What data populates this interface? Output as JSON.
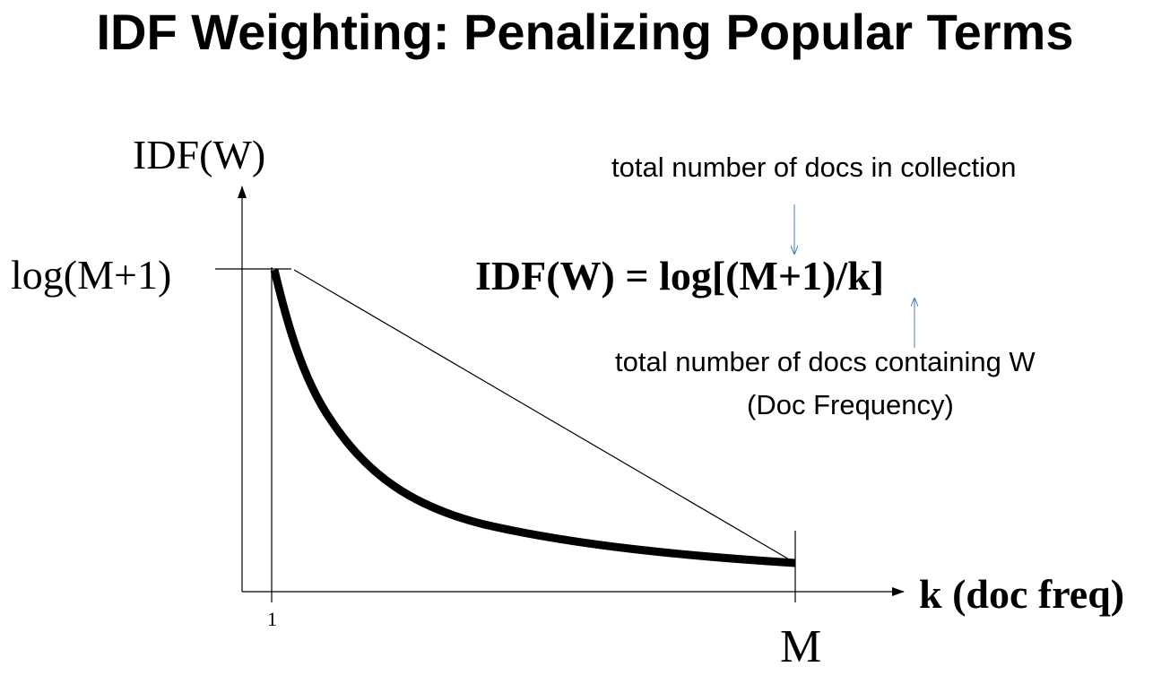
{
  "title": "IDF Weighting: Penalizing Popular Terms",
  "axes": {
    "y_label": "IDF(W)",
    "x_label": "k (doc freq)",
    "y_tick_max": "log(M+1)",
    "x_tick_min": "1",
    "x_tick_max": "M"
  },
  "formula": "IDF(W) = log[(M+1)/k]",
  "annotations": {
    "total_docs": "total number of docs in collection",
    "doc_freq_line1": "total number of docs containing W",
    "doc_freq_line2": "(Doc Frequency)"
  },
  "colors": {
    "text": "#000000",
    "arrow_annotation": "#4a7bb7"
  }
}
